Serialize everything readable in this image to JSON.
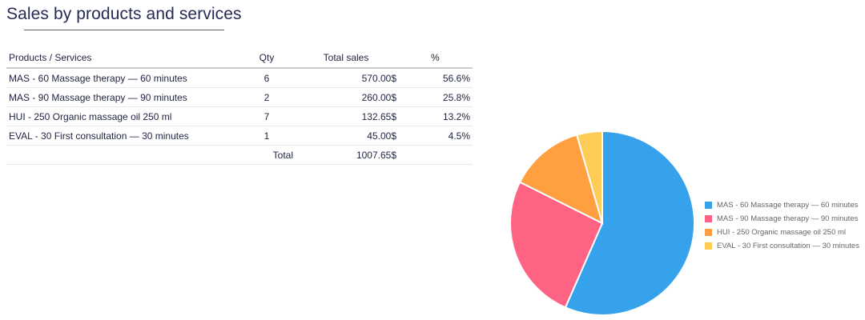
{
  "report": {
    "title": "Sales by products and services"
  },
  "table": {
    "headers": {
      "product": "Products / Services",
      "qty": "Qty",
      "total_sales": "Total sales",
      "percent": "%"
    },
    "rows": [
      {
        "product": "MAS - 60 Massage therapy — 60 minutes",
        "qty": "6",
        "total_sales": "570.00$",
        "percent": "56.6%"
      },
      {
        "product": "MAS - 90 Massage therapy — 90 minutes",
        "qty": "2",
        "total_sales": "260.00$",
        "percent": "25.8%"
      },
      {
        "product": "HUI - 250 Organic massage oil 250 ml",
        "qty": "7",
        "total_sales": "132.65$",
        "percent": "13.2%"
      },
      {
        "product": "EVAL - 30 First consultation — 30 minutes",
        "qty": "1",
        "total_sales": "45.00$",
        "percent": "4.5%"
      }
    ],
    "total_label": "Total",
    "total_value": "1007.65$"
  },
  "chart_data": {
    "type": "pie",
    "categories": [
      "MAS - 60  Massage therapy — 60 minutes",
      "MAS - 90  Massage therapy — 90 minutes",
      "HUI - 250  Organic massage oil 250 ml",
      "EVAL - 30  First consultation — 30 minutes"
    ],
    "values": [
      570.0,
      260.0,
      132.65,
      45.0
    ],
    "colors": [
      "#36a2eb",
      "#ff6384",
      "#ff9f40",
      "#ffcd56"
    ],
    "legend_position": "right"
  }
}
